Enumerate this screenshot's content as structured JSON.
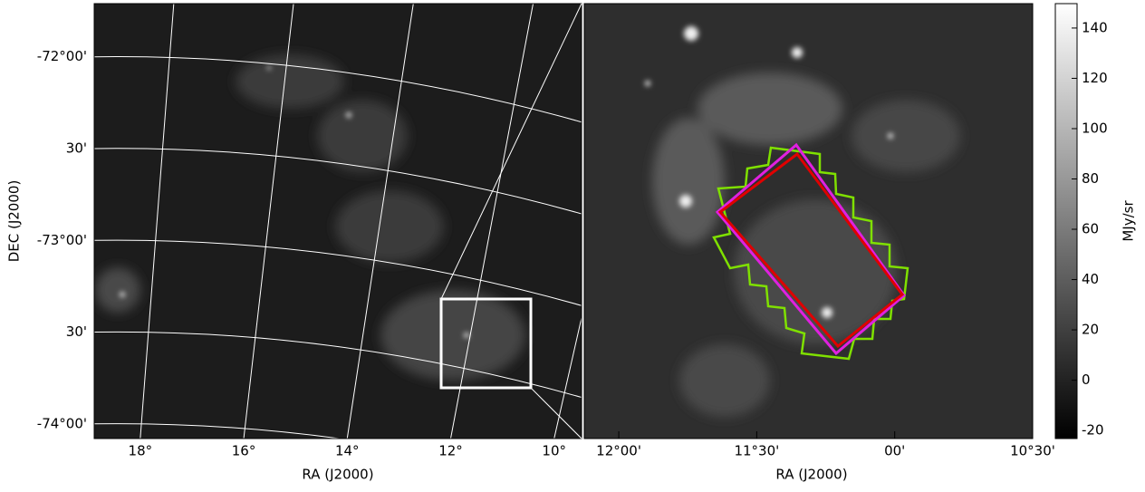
{
  "chart_data": [
    {
      "type": "image",
      "xlabel": "RA (J2000)",
      "ylabel": "DEC (J2000)",
      "xlim": [
        18.89,
        9.47
      ],
      "ylim": [
        -74.08,
        -71.71
      ],
      "xticks": [
        {
          "value": 18,
          "label": "18°"
        },
        {
          "value": 16,
          "label": "16°"
        },
        {
          "value": 14,
          "label": "14°"
        },
        {
          "value": 12,
          "label": "12°"
        },
        {
          "value": 10,
          "label": "10°"
        }
      ],
      "yticks": [
        {
          "value": -72,
          "label": "-72°00'"
        },
        {
          "value": -72.5,
          "label": "30'"
        },
        {
          "value": -73,
          "label": "-73°00'"
        },
        {
          "value": -73.5,
          "label": "30'"
        },
        {
          "value": -74,
          "label": "-74°00'"
        }
      ],
      "grid": true
    },
    {
      "type": "image",
      "xlabel": "RA (J2000)",
      "xlim": [
        12.125,
        10.5
      ],
      "xticks": [
        {
          "value": 12,
          "label": "12°00'"
        },
        {
          "value": 11.5,
          "label": "11°30'"
        },
        {
          "value": 11,
          "label": "00'"
        },
        {
          "value": 10.5,
          "label": "10°30'"
        }
      ]
    },
    {
      "type": "colorbar",
      "label": "MJy/sr",
      "ylim": [
        -23.2,
        149.7
      ],
      "yticks": [
        -20,
        0,
        20,
        40,
        60,
        80,
        100,
        120,
        140
      ]
    }
  ]
}
